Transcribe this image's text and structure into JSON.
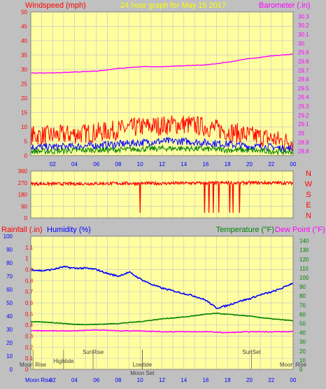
{
  "colors": {
    "frame": "#c0c0c0",
    "plot_bg": "#ffffa0",
    "grid": "#c8c8c8",
    "wind_gust": "#ff0000",
    "wind_avg": "#0000ff",
    "wind_low": "#008000",
    "barometer": "#ff00ff",
    "rainfall": "#ff0000",
    "humidity": "#0000ff",
    "temperature": "#008000",
    "dew_point": "#ff00ff",
    "title": "#ffff00",
    "events": "#404040"
  },
  "chart_data": [
    {
      "type": "line",
      "id": "wind_barometer",
      "title": "24 hour graph for   May 15 2017",
      "ylabel_left": "Windspeed (mph)",
      "ylabel_right": "Barometer (.in)",
      "yticks_left": [
        "0",
        "5",
        "10",
        "15",
        "20",
        "25",
        "30",
        "35",
        "40",
        "45",
        "50"
      ],
      "ylim_left": [
        0,
        50
      ],
      "yticks_right": [
        "28.8",
        "28.9",
        "29",
        "29.1",
        "29.2",
        "29.3",
        "29.4",
        "29.5",
        "29.6",
        "29.7",
        "29.8",
        "29.9",
        "30",
        "30.1",
        "30.2",
        "30.3"
      ],
      "ylim_right": [
        28.75,
        30.35
      ],
      "xticks": [
        "02",
        "04",
        "06",
        "08",
        "10",
        "12",
        "14",
        "16",
        "18",
        "20",
        "22",
        "00"
      ],
      "xlim": [
        0,
        24
      ],
      "grid": true,
      "series": [
        {
          "role": "barometer",
          "axis": "right",
          "noise": 0.003,
          "x": [
            0,
            2,
            4,
            6,
            8,
            10,
            12,
            14,
            16,
            18,
            20,
            22,
            24
          ],
          "y": [
            29.67,
            29.67,
            29.68,
            29.69,
            29.72,
            29.74,
            29.74,
            29.75,
            29.76,
            29.79,
            29.83,
            29.86,
            29.88
          ]
        },
        {
          "role": "gust",
          "axis": "left",
          "noise": 3.5,
          "x": [
            0,
            2,
            4,
            6,
            8,
            10,
            12,
            14,
            16,
            18,
            20,
            22,
            23,
            24
          ],
          "y": [
            7,
            7,
            7.5,
            8,
            9,
            10,
            10.5,
            11,
            10,
            8.5,
            7,
            6,
            5,
            5
          ]
        },
        {
          "role": "average",
          "axis": "left",
          "noise": 1.3,
          "x": [
            0,
            2,
            4,
            6,
            8,
            10,
            12,
            14,
            16,
            18,
            20,
            22,
            23,
            24
          ],
          "y": [
            3,
            3,
            3.2,
            3.5,
            4,
            4.5,
            5,
            5,
            4.5,
            4,
            3.2,
            3,
            2.5,
            2.5
          ]
        },
        {
          "role": "low",
          "axis": "left",
          "noise": 1.0,
          "x": [
            0,
            2,
            4,
            6,
            8,
            10,
            12,
            14,
            16,
            18,
            20,
            22,
            24
          ],
          "y": [
            1.5,
            1.5,
            1.8,
            2,
            2,
            2.3,
            2.5,
            2.5,
            2.3,
            2,
            1.8,
            1.5,
            1.3
          ]
        }
      ]
    },
    {
      "type": "line",
      "id": "wind_direction",
      "yticks_left": [
        "0",
        "90",
        "180",
        "270",
        "360"
      ],
      "ylim": [
        0,
        360
      ],
      "compass_labels": [
        "N",
        "W",
        "S",
        "E",
        "N"
      ],
      "xlim": [
        0,
        24
      ],
      "grid": true,
      "series": [
        {
          "role": "direction",
          "noise": 12,
          "x": [
            0,
            4,
            8,
            12,
            16,
            20,
            24
          ],
          "y": [
            262,
            262,
            265,
            265,
            268,
            270,
            268
          ],
          "drops": [
            [
              10.0,
              40
            ],
            [
              15.9,
              40
            ],
            [
              16.3,
              40
            ],
            [
              16.7,
              40
            ],
            [
              17.2,
              40
            ],
            [
              18.2,
              40
            ],
            [
              18.5,
              40
            ],
            [
              19.1,
              40
            ]
          ]
        }
      ]
    },
    {
      "type": "line",
      "id": "temp_humidity",
      "ylabel_rain": "Rainfall (.in)",
      "ylabel_humidity": "Humidity (%)",
      "ylabel_temp": "Temperature (°F)",
      "ylabel_dew": "Dew Point (°F)",
      "yticks_humidity": [
        "0",
        "10",
        "20",
        "30",
        "40",
        "50",
        "60",
        "70",
        "80",
        "90",
        "100"
      ],
      "ylim_humidity": [
        0,
        100
      ],
      "yticks_rain": [
        "0",
        "0.1",
        "0.2",
        "0.3",
        "0.4",
        "0.5",
        "0.6",
        "0.7",
        "0.8",
        "0.9",
        "1",
        "1.1"
      ],
      "ylim_rain": [
        0,
        1.2
      ],
      "yticks_temp": [
        "0",
        "10",
        "20",
        "30",
        "40",
        "50",
        "60",
        "70",
        "80",
        "90",
        "100",
        "110",
        "120",
        "130",
        "140"
      ],
      "ylim_temp": [
        0,
        145
      ],
      "xticks": [
        "02",
        "04",
        "06",
        "08",
        "10",
        "12",
        "14",
        "16",
        "18",
        "20",
        "22",
        "00"
      ],
      "xlim": [
        0,
        24
      ],
      "grid": true,
      "series": [
        {
          "role": "humidity",
          "axis": "humidity",
          "noise": 0.6,
          "x": [
            0,
            1,
            2,
            3,
            4,
            5,
            6,
            7,
            8,
            9,
            10,
            11,
            12,
            13,
            14,
            15,
            16,
            17,
            18,
            19,
            20,
            21,
            22,
            23,
            24
          ],
          "y": [
            75,
            74,
            75,
            77,
            76,
            76,
            75,
            72,
            70,
            73,
            68,
            64,
            61,
            59,
            57,
            55,
            52,
            46,
            48,
            51,
            53,
            56,
            58,
            61,
            65
          ]
        },
        {
          "role": "temperature",
          "axis": "temp",
          "noise": 0.4,
          "x": [
            0,
            2,
            4,
            6,
            8,
            10,
            12,
            14,
            16,
            17,
            18,
            20,
            22,
            24
          ],
          "y": [
            52,
            51,
            49,
            49,
            50,
            52,
            55,
            57,
            60,
            61,
            60,
            58,
            55,
            53
          ]
        },
        {
          "role": "dew_point",
          "axis": "temp",
          "noise": 0.4,
          "x": [
            0,
            2,
            4,
            6,
            8,
            10,
            12,
            14,
            16,
            18,
            20,
            22,
            24
          ],
          "y": [
            42,
            42,
            42,
            43,
            42,
            42,
            41,
            41,
            41,
            40,
            41,
            41,
            41
          ]
        }
      ],
      "events": [
        {
          "label": "Moon Rise",
          "x": 0.2,
          "row": 2
        },
        {
          "label": "Hightide",
          "x": 3.0,
          "row": 0
        },
        {
          "label": "SunRise",
          "x": 5.7,
          "row": 1
        },
        {
          "label": "Lowtide",
          "x": 10.2,
          "row": 2
        },
        {
          "label": "Moon Set",
          "x": 10.2,
          "row": 3
        },
        {
          "label": "SunSet",
          "x": 20.2,
          "row": 1
        },
        {
          "label": "Moon Rise",
          "x": 24.0,
          "row": 2
        }
      ],
      "moon_axis": {
        "label": "Moon Rise"
      }
    }
  ]
}
